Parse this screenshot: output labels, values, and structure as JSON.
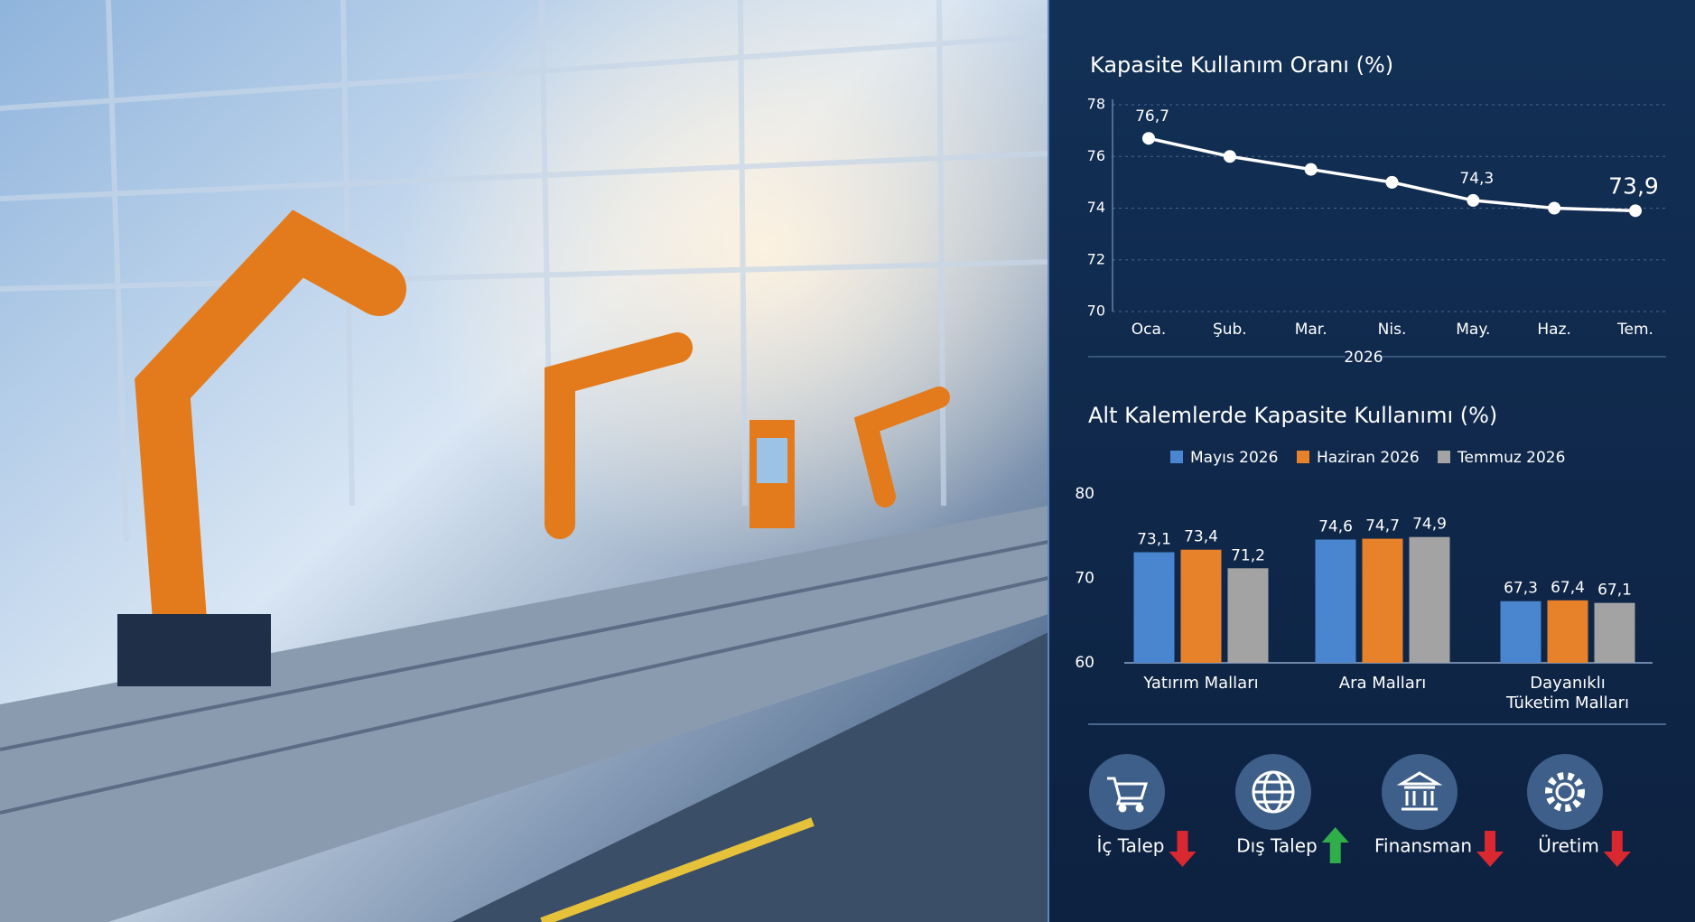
{
  "chart_data": [
    {
      "type": "line",
      "title": "Kapasite Kullanım Oranı (%)",
      "categories": [
        "Oca.",
        "Şub.",
        "Mar.",
        "Nis.",
        "May.",
        "Haz.",
        "Tem."
      ],
      "values": [
        76.7,
        76.0,
        75.5,
        75.0,
        74.3,
        74.0,
        73.9
      ],
      "value_labels": [
        "76,7",
        null,
        null,
        null,
        "74,3",
        null,
        "73,9"
      ],
      "xlabel": "2026",
      "color": "#ffffff",
      "ylim": [
        70,
        78
      ],
      "yticks": [
        70,
        72,
        74,
        76,
        78
      ],
      "grid": true
    },
    {
      "type": "bar",
      "title": "Alt Kalemlerde Kapasite Kullanımı (%)",
      "categories": [
        "Yatırım Malları",
        "Ara Malları",
        "Dayanıklı Tüketim Malları"
      ],
      "series": [
        {
          "name": "Mayıs 2026",
          "color": "#4a86d0",
          "values": [
            73.1,
            74.6,
            67.3
          ],
          "value_labels": [
            "73,1",
            "74,6",
            "67,3"
          ]
        },
        {
          "name": "Haziran 2026",
          "color": "#e8822a",
          "values": [
            73.4,
            74.7,
            67.4
          ],
          "value_labels": [
            "73,4",
            "74,7",
            "67,4"
          ]
        },
        {
          "name": "Temmuz 2026",
          "color": "#a3a3a3",
          "values": [
            71.2,
            74.9,
            67.1
          ],
          "value_labels": [
            "71,2",
            "74,9",
            "67,1"
          ]
        }
      ],
      "ylim": [
        60,
        80
      ],
      "yticks": [
        60,
        70,
        80
      ],
      "legend": "top"
    }
  ],
  "indicators": [
    {
      "label": "İç Talep",
      "trend": "down"
    },
    {
      "label": "Dış Talep",
      "trend": "up"
    },
    {
      "label": "Finansman",
      "trend": "down"
    },
    {
      "label": "Üretim",
      "trend": "down"
    }
  ]
}
